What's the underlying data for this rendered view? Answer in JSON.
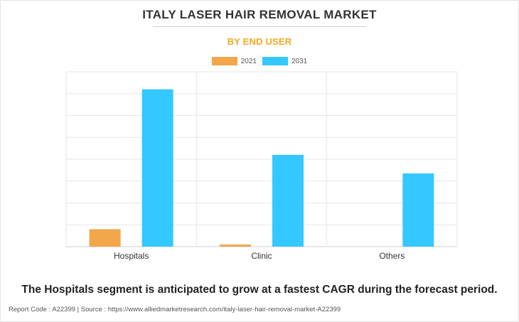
{
  "title": "ITALY LASER HAIR REMOVAL MARKET",
  "subtitle": "BY END USER",
  "colors": {
    "subtitle": "#f5a623",
    "series_2021": "#f4a64a",
    "series_2031": "#33c8ff",
    "grid": "#e6e6e6",
    "axis_text": "#333333"
  },
  "chart_data": {
    "type": "bar",
    "categories": [
      "Hospitals",
      "Clinic",
      "Others"
    ],
    "series": [
      {
        "name": "2021",
        "values": [
          8,
          1,
          0
        ]
      },
      {
        "name": "2031",
        "values": [
          72,
          42,
          33.5
        ]
      }
    ],
    "ylim": [
      0,
      80
    ],
    "grid": true,
    "legend": "top-center",
    "xlabel": "",
    "ylabel": ""
  },
  "footer": {
    "headline": "The Hospitals segment is anticipated to grow at a fastest CAGR during the forecast period.",
    "source": "Report Code : A22399  |  Source : https://www.alliedmarketresearch.com/italy-laser-hair-removal-market-A22399"
  }
}
